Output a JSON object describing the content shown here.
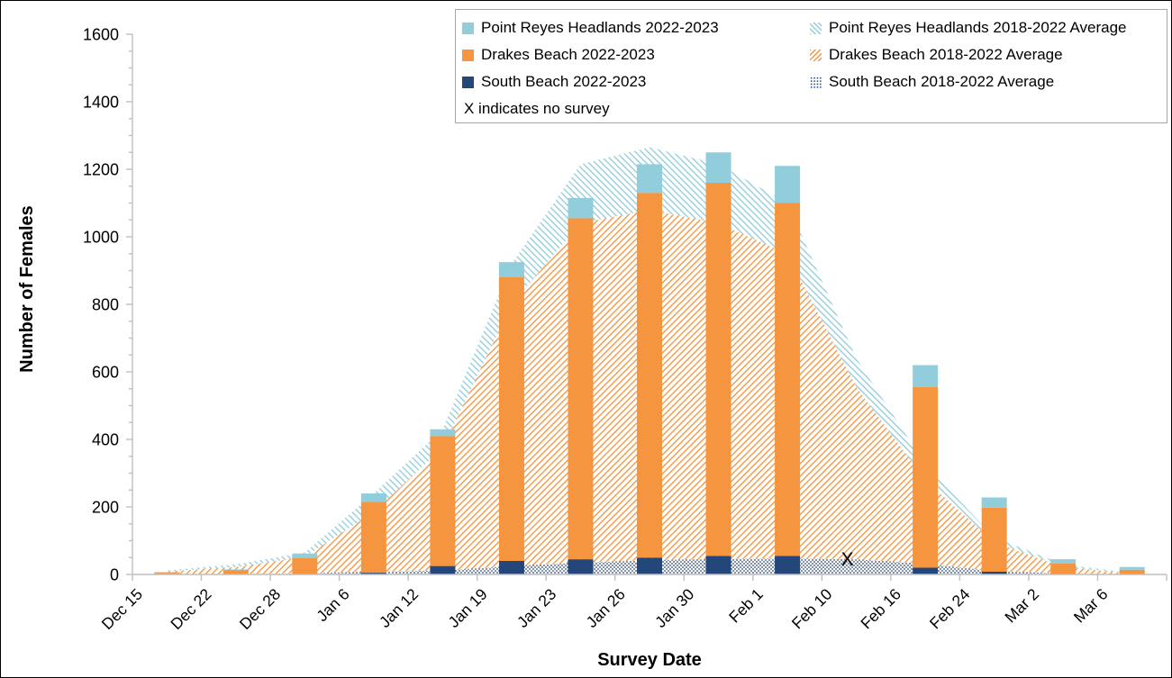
{
  "axes": {
    "y_title": "Number of Females",
    "x_title": "Survey Date",
    "y_min": 0,
    "y_max": 1600,
    "y_tick_step": 200,
    "y_minor_step": 50,
    "axis_color": "#BFBFBF",
    "label_color": "#000000"
  },
  "legend": {
    "border_color": "#A6A6A6",
    "items": [
      {
        "label": "Point Reyes Headlands 2022-2023",
        "swatch": "solid",
        "color": "#92CDDC"
      },
      {
        "label": "Drakes Beach 2022-2023",
        "swatch": "solid",
        "color": "#F6953F"
      },
      {
        "label": "South Beach 2022-2023",
        "swatch": "solid",
        "color": "#24477B"
      },
      {
        "label": "X indicates no survey",
        "swatch": "none",
        "color": ""
      },
      {
        "label": "Point Reyes Headlands 2018-2022 Average",
        "swatch": "hatch-backslash",
        "color": "#92CDDC"
      },
      {
        "label": "Drakes Beach 2018-2022 Average",
        "swatch": "hatch-slash",
        "color": "#F6953F"
      },
      {
        "label": "South Beach 2018-2022 Average",
        "swatch": "dots",
        "color": "#24477B"
      }
    ]
  },
  "chart_data": {
    "type": "combo: stacked bars (2022-2023) over stacked pattern areas (2018-2022 averages)",
    "categories": [
      "Dec 15",
      "Dec 22",
      "Dec 28",
      "Jan 6",
      "Jan 12",
      "Jan 19",
      "Jan 23",
      "Jan 26",
      "Jan 30",
      "Feb 1",
      "Feb 10",
      "Feb 16",
      "Feb 24",
      "Mar 2",
      "Mar 6"
    ],
    "ylim": [
      0,
      1600
    ],
    "grid": false,
    "legend_position": "top-right box, two columns",
    "bars_bottom_to_top": [
      {
        "name": "South Beach 2022-2023",
        "color": "#24477B",
        "values": [
          0,
          0,
          0,
          5,
          25,
          40,
          45,
          50,
          55,
          55,
          null,
          20,
          8,
          0,
          0
        ]
      },
      {
        "name": "Drakes Beach 2022-2023",
        "color": "#F6953F",
        "values": [
          5,
          13,
          48,
          210,
          385,
          840,
          1010,
          1080,
          1105,
          1045,
          null,
          535,
          190,
          32,
          14
        ]
      },
      {
        "name": "Point Reyes Headlands 2022-2023",
        "color": "#92CDDC",
        "values": [
          2,
          2,
          14,
          25,
          20,
          45,
          60,
          85,
          90,
          110,
          null,
          65,
          30,
          13,
          8
        ]
      }
    ],
    "areas_bottom_to_top": [
      {
        "name": "South Beach 2018-2022 Average",
        "color": "#24477B",
        "pattern": "dots",
        "values": [
          1,
          2,
          4,
          8,
          12,
          25,
          35,
          42,
          46,
          48,
          45,
          32,
          10,
          3,
          0
        ]
      },
      {
        "name": "Drakes Beach 2018-2022 Average",
        "color": "#F6953F",
        "pattern": "hatch-slash",
        "values": [
          8,
          20,
          48,
          177,
          363,
          775,
          1005,
          1038,
          994,
          902,
          510,
          248,
          85,
          19,
          3
        ]
      },
      {
        "name": "Point Reyes Headlands 2018-2022 Average",
        "color": "#92CDDC",
        "pattern": "hatch-backslash",
        "values": [
          3,
          8,
          13,
          55,
          55,
          120,
          175,
          185,
          175,
          150,
          85,
          45,
          15,
          8,
          1
        ]
      }
    ],
    "no_survey_marker": {
      "category": "Feb 10",
      "symbol": "X"
    }
  }
}
